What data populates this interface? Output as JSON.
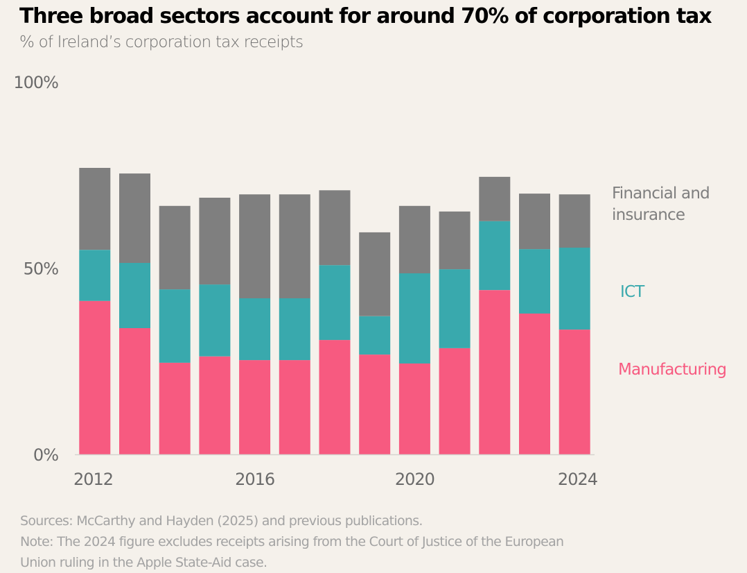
{
  "header": {
    "title": "Three broad sectors account for around 70% of corporation tax",
    "subtitle": "% of Ireland’s corporation tax receipts"
  },
  "footer": {
    "sources": "Sources: McCarthy and Hayden (2025) and previous publications.",
    "note_line1": "Note: The 2024 figure excludes receipts arising from the Court of Justice of the European",
    "note_line2": "Union ruling in the Apple State-Aid case."
  },
  "colors": {
    "background": "#f5f1eb",
    "manufacturing": "#f75a80",
    "ict": "#39a9ad",
    "financial": "#7f7f7f",
    "axis": "#d6d3cf"
  },
  "chart_data": {
    "type": "bar",
    "stacked": true,
    "title": "Three broad sectors account for around 70% of corporation tax",
    "subtitle": "% of Ireland’s corporation tax receipts",
    "xlabel": "",
    "ylabel": "",
    "ylim": [
      0,
      100
    ],
    "y_ticks": [
      0,
      50,
      100
    ],
    "y_tick_labels": [
      "0%",
      "50%",
      "100%"
    ],
    "grid": false,
    "legend": "right (direct labels)",
    "categories": [
      "2012",
      "2013",
      "2014",
      "2015",
      "2016",
      "2017",
      "2018",
      "2019",
      "2020",
      "2021",
      "2022",
      "2023",
      "2024"
    ],
    "x_tick_labels": [
      "2012",
      "2016",
      "2020",
      "2024"
    ],
    "series": [
      {
        "name": "Manufacturing",
        "color": "#f75a80",
        "values": [
          41.2,
          33.9,
          24.6,
          26.3,
          25.3,
          25.3,
          30.7,
          26.8,
          24.4,
          28.5,
          44.1,
          37.8,
          33.5
        ]
      },
      {
        "name": "ICT",
        "color": "#39a9ad",
        "values": [
          13.7,
          17.5,
          19.7,
          19.3,
          16.6,
          16.6,
          20.1,
          10.3,
          24.2,
          21.2,
          18.5,
          17.3,
          22.0
        ]
      },
      {
        "name": "Financial and insurance",
        "color": "#7f7f7f",
        "values": [
          22.0,
          24.0,
          22.4,
          23.3,
          27.9,
          27.9,
          20.1,
          22.5,
          18.1,
          15.5,
          11.9,
          14.9,
          14.3
        ]
      }
    ],
    "legend_labels": {
      "financial_line1": "Financial and",
      "financial_line2": "insurance",
      "ict": "ICT",
      "manufacturing": "Manufacturing"
    }
  }
}
